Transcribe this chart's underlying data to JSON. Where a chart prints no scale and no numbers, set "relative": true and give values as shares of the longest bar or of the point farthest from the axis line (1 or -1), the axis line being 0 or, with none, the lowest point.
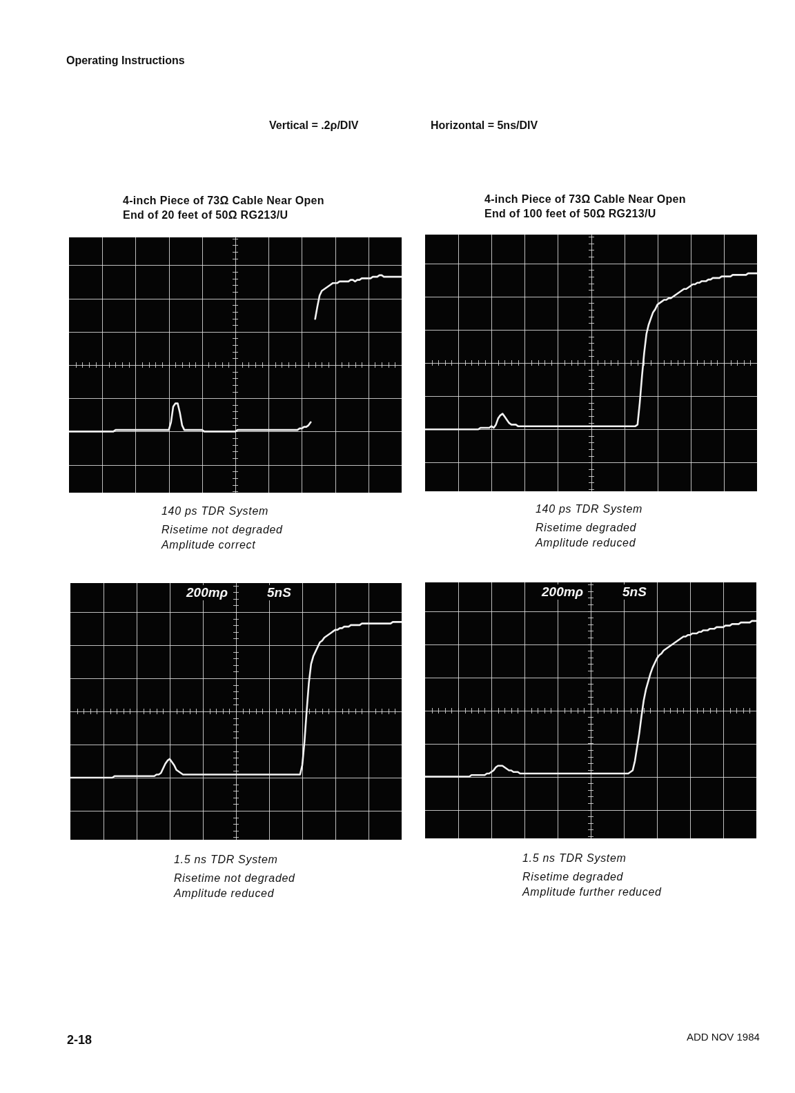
{
  "chart_data": [
    {
      "type": "other",
      "title": "Operating Instructions",
      "annotations": [
        "Vertical = .2ρ/DIV",
        "Horizontal = 5ns/DIV"
      ]
    },
    {
      "type": "line",
      "title": "4-inch Piece of 73Ω Cable Near Open\nEnd of 20 feet of 50Ω RG213/U",
      "relative": true,
      "grid": true,
      "color": "#f2f2f2",
      "categories": [
        null,
        null,
        null,
        null,
        null,
        null,
        null,
        null,
        null,
        null,
        null,
        null,
        null,
        null,
        null,
        null,
        null,
        null,
        null,
        null,
        null,
        null,
        null,
        null,
        null,
        null,
        null,
        null,
        null,
        null,
        null,
        null,
        null,
        null,
        null,
        null,
        null,
        null,
        null,
        null,
        null,
        null,
        null,
        null,
        null,
        null,
        null,
        null,
        null,
        null,
        null,
        null,
        null,
        null,
        null,
        null,
        null,
        null,
        null,
        null,
        null,
        null,
        null,
        null,
        null,
        null,
        null,
        null,
        null,
        null,
        null,
        null,
        null,
        null,
        null,
        null,
        null,
        null,
        null,
        null,
        null,
        null,
        null,
        null,
        null,
        null,
        null,
        null,
        null,
        null,
        null,
        null,
        null,
        null,
        null,
        null,
        null,
        null,
        null,
        null,
        null,
        null,
        null,
        null,
        null,
        null,
        null,
        null,
        null,
        null,
        null,
        null,
        null,
        null,
        null,
        null,
        null,
        null,
        null,
        null,
        null,
        null,
        null,
        null,
        null,
        null,
        null,
        null,
        null,
        null,
        null,
        null,
        null,
        null,
        null,
        null,
        null,
        null,
        null,
        null,
        null,
        null,
        null,
        null,
        null,
        null,
        null,
        null,
        null,
        null,
        null
      ],
      "values": [
        0,
        0,
        0,
        0,
        0,
        0,
        0,
        0,
        0,
        0,
        0,
        0,
        0,
        0,
        0,
        0,
        0,
        0,
        0,
        0,
        0,
        0.01,
        0.01,
        0.01,
        0.01,
        0.01,
        0.01,
        0.01,
        0.01,
        0.01,
        0.01,
        0.01,
        0.01,
        0.01,
        0.01,
        0.01,
        0.01,
        0.01,
        0.01,
        0.01,
        0.01,
        0.01,
        0.01,
        0.01,
        0.01,
        0.01,
        0.06,
        0.16,
        0.18,
        0.18,
        0.12,
        0.04,
        0.01,
        0.01,
        0.01,
        0.01,
        0.01,
        0.01,
        0.01,
        0.01,
        0.01,
        0,
        0,
        0,
        0,
        0,
        0,
        0,
        0,
        0,
        0,
        0,
        0,
        0,
        0,
        0,
        0.01,
        0.01,
        0.01,
        0.01,
        0.01,
        0.01,
        0.01,
        0.01,
        0.01,
        0.01,
        0.01,
        0.01,
        0.01,
        0.01,
        0.01,
        0.01,
        0.01,
        0.01,
        0.01,
        0.01,
        0.01,
        0.01,
        0.01,
        0.01,
        0.01,
        0.01,
        0.01,
        0.01,
        0.02,
        0.02,
        0.03,
        0.03,
        0.04,
        0.06,
        null,
        0.72,
        0.8,
        0.87,
        0.9,
        0.91,
        0.92,
        0.93,
        0.94,
        0.95,
        0.95,
        0.95,
        0.96,
        0.96,
        0.96,
        0.96,
        0.96,
        0.97,
        0.97,
        0.96,
        0.97,
        0.97,
        0.98,
        0.98,
        0.98,
        0.98,
        0.98,
        0.99,
        0.99,
        0.99,
        1,
        1,
        0.99,
        0.99,
        0.99,
        0.99,
        0.99,
        0.99,
        0.99,
        0.99,
        0.99
      ],
      "annotations": [
        "140 ps TDR System",
        "Risetime not degraded",
        "Amplitude correct"
      ]
    },
    {
      "type": "line",
      "title": "4-inch Piece of 73Ω Cable Near Open\nEnd of 100 feet of 50Ω RG213/U",
      "relative": true,
      "grid": true,
      "color": "#f2f2f2",
      "categories": [
        null,
        null,
        null,
        null,
        null,
        null,
        null,
        null,
        null,
        null,
        null,
        null,
        null,
        null,
        null,
        null,
        null,
        null,
        null,
        null,
        null,
        null,
        null,
        null,
        null,
        null,
        null,
        null,
        null,
        null,
        null,
        null,
        null,
        null,
        null,
        null,
        null,
        null,
        null,
        null,
        null,
        null,
        null,
        null,
        null,
        null,
        null,
        null,
        null,
        null,
        null,
        null,
        null,
        null,
        null,
        null,
        null,
        null,
        null,
        null,
        null,
        null,
        null,
        null,
        null,
        null,
        null,
        null,
        null,
        null,
        null,
        null,
        null,
        null,
        null,
        null,
        null,
        null,
        null,
        null,
        null,
        null,
        null,
        null,
        null,
        null,
        null,
        null,
        null,
        null,
        null,
        null,
        null,
        null,
        null,
        null,
        null,
        null,
        null,
        null,
        null,
        null,
        null,
        null,
        null,
        null,
        null,
        null,
        null,
        null,
        null,
        null,
        null,
        null,
        null,
        null,
        null,
        null,
        null,
        null,
        null,
        null,
        null,
        null,
        null,
        null,
        null,
        null,
        null,
        null,
        null,
        null,
        null,
        null,
        null,
        null,
        null,
        null,
        null,
        null,
        null,
        null,
        null,
        null,
        null,
        null,
        null,
        null,
        null,
        null,
        null
      ],
      "values": [
        0,
        0,
        0,
        0,
        0,
        0,
        0,
        0,
        0,
        0,
        0,
        0,
        0,
        0,
        0,
        0,
        0,
        0,
        0,
        0,
        0,
        0,
        0,
        0,
        0,
        0.01,
        0.01,
        0.01,
        0.01,
        0.01,
        0.02,
        0.01,
        0.03,
        0.07,
        0.09,
        0.1,
        0.08,
        0.06,
        0.04,
        0.03,
        0.03,
        0.03,
        0.02,
        0.02,
        0.02,
        0.02,
        0.02,
        0.02,
        0.02,
        0.02,
        0.02,
        0.02,
        0.02,
        0.02,
        0.02,
        0.02,
        0.02,
        0.02,
        0.02,
        0.02,
        0.02,
        0.02,
        0.02,
        0.02,
        0.02,
        0.02,
        0.02,
        0.02,
        0.02,
        0.02,
        0.02,
        0.02,
        0.02,
        0.02,
        0.02,
        0.02,
        0.02,
        0.02,
        0.02,
        0.02,
        0.02,
        0.02,
        0.02,
        0.02,
        0.02,
        0.02,
        0.02,
        0.02,
        0.02,
        0.02,
        0.02,
        0.02,
        0.02,
        0.02,
        0.02,
        0.02,
        0.03,
        0.17,
        0.34,
        0.49,
        0.61,
        0.67,
        0.71,
        0.75,
        0.77,
        0.8,
        0.81,
        0.82,
        0.83,
        0.83,
        0.84,
        0.84,
        0.85,
        0.86,
        0.87,
        0.88,
        0.89,
        0.9,
        0.9,
        0.91,
        0.92,
        0.93,
        0.93,
        0.94,
        0.94,
        0.95,
        0.95,
        0.95,
        0.96,
        0.96,
        0.97,
        0.97,
        0.97,
        0.97,
        0.98,
        0.98,
        0.98,
        0.98,
        0.98,
        0.99,
        0.99,
        0.99,
        0.99,
        0.99,
        0.99,
        0.99,
        1,
        1,
        1,
        1,
        1
      ],
      "annotations": [
        "140 ps TDR System",
        "Risetime degraded",
        "Amplitude reduced"
      ]
    },
    {
      "type": "line",
      "xlabel": "5nS",
      "ylabel": "200mρ",
      "relative": true,
      "grid": true,
      "color": "#f2f2f2",
      "categories": [
        null,
        null,
        null,
        null,
        null,
        null,
        null,
        null,
        null,
        null,
        null,
        null,
        null,
        null,
        null,
        null,
        null,
        null,
        null,
        null,
        null,
        null,
        null,
        null,
        null,
        null,
        null,
        null,
        null,
        null,
        null,
        null,
        null,
        null,
        null,
        null,
        null,
        null,
        null,
        null,
        null,
        null,
        null,
        null,
        null,
        null,
        null,
        null,
        null,
        null,
        null,
        null,
        null,
        null,
        null,
        null,
        null,
        null,
        null,
        null,
        null,
        null,
        null,
        null,
        null,
        null,
        null,
        null,
        null,
        null,
        null,
        null,
        null,
        null,
        null,
        null,
        null,
        null,
        null,
        null,
        null,
        null,
        null,
        null,
        null,
        null,
        null,
        null,
        null,
        null,
        null,
        null,
        null,
        null,
        null,
        null,
        null,
        null,
        null,
        null,
        null,
        null,
        null,
        null,
        null,
        null,
        null,
        null,
        null,
        null,
        null,
        null,
        null,
        null,
        null,
        null,
        null,
        null,
        null,
        null,
        null,
        null,
        null,
        null,
        null,
        null,
        null,
        null,
        null,
        null,
        null,
        null,
        null,
        null,
        null,
        null,
        null,
        null,
        null,
        null,
        null,
        null,
        null,
        null,
        null,
        null,
        null,
        null,
        null,
        null,
        null
      ],
      "values": [
        0,
        0,
        0,
        0,
        0,
        0,
        0,
        0,
        0,
        0,
        0,
        0,
        0,
        0,
        0,
        0,
        0,
        0,
        0,
        0,
        0.01,
        0.01,
        0.01,
        0.01,
        0.01,
        0.01,
        0.01,
        0.01,
        0.01,
        0.01,
        0.01,
        0.01,
        0.01,
        0.01,
        0.01,
        0.01,
        0.01,
        0.01,
        0.01,
        0.02,
        0.02,
        0.03,
        0.06,
        0.09,
        0.11,
        0.12,
        0.1,
        0.08,
        0.05,
        0.04,
        0.03,
        0.02,
        0.02,
        0.02,
        0.02,
        0.02,
        0.02,
        0.02,
        0.02,
        0.02,
        0.02,
        0.02,
        0.02,
        0.02,
        0.02,
        0.02,
        0.02,
        0.02,
        0.02,
        0.02,
        0.02,
        0.02,
        0.02,
        0.02,
        0.02,
        0.02,
        0.02,
        0.02,
        0.02,
        0.02,
        0.02,
        0.02,
        0.02,
        0.02,
        0.02,
        0.02,
        0.02,
        0.02,
        0.02,
        0.02,
        0.02,
        0.02,
        0.02,
        0.02,
        0.02,
        0.02,
        0.02,
        0.02,
        0.02,
        0.02,
        0.02,
        0.02,
        0.02,
        0.02,
        0.02,
        0.08,
        0.23,
        0.43,
        0.61,
        0.73,
        0.78,
        0.81,
        0.84,
        0.87,
        0.88,
        0.9,
        0.91,
        0.92,
        0.93,
        0.94,
        0.95,
        0.95,
        0.96,
        0.96,
        0.97,
        0.97,
        0.97,
        0.98,
        0.98,
        0.98,
        0.98,
        0.98,
        0.99,
        0.99,
        0.99,
        0.99,
        0.99,
        0.99,
        0.99,
        0.99,
        0.99,
        0.99,
        0.99,
        0.99,
        0.99,
        0.99,
        1,
        1,
        1,
        1,
        1
      ],
      "annotations": [
        "1.5 ns TDR System",
        "Risetime not degraded",
        "Amplitude reduced"
      ]
    },
    {
      "type": "line",
      "xlabel": "5nS",
      "ylabel": "200mρ",
      "relative": true,
      "grid": true,
      "color": "#f2f2f2",
      "categories": [
        null,
        null,
        null,
        null,
        null,
        null,
        null,
        null,
        null,
        null,
        null,
        null,
        null,
        null,
        null,
        null,
        null,
        null,
        null,
        null,
        null,
        null,
        null,
        null,
        null,
        null,
        null,
        null,
        null,
        null,
        null,
        null,
        null,
        null,
        null,
        null,
        null,
        null,
        null,
        null,
        null,
        null,
        null,
        null,
        null,
        null,
        null,
        null,
        null,
        null,
        null,
        null,
        null,
        null,
        null,
        null,
        null,
        null,
        null,
        null,
        null,
        null,
        null,
        null,
        null,
        null,
        null,
        null,
        null,
        null,
        null,
        null,
        null,
        null,
        null,
        null,
        null,
        null,
        null,
        null,
        null,
        null,
        null,
        null,
        null,
        null,
        null,
        null,
        null,
        null,
        null,
        null,
        null,
        null,
        null,
        null,
        null,
        null,
        null,
        null,
        null,
        null,
        null,
        null,
        null,
        null,
        null,
        null,
        null,
        null,
        null,
        null,
        null,
        null,
        null,
        null,
        null,
        null,
        null,
        null,
        null,
        null,
        null,
        null,
        null,
        null,
        null,
        null,
        null,
        null,
        null,
        null,
        null,
        null,
        null,
        null,
        null,
        null,
        null,
        null,
        null,
        null,
        null,
        null,
        null,
        null,
        null,
        null,
        null,
        null,
        null
      ],
      "values": [
        0,
        0,
        0,
        0,
        0,
        0,
        0,
        0,
        0,
        0,
        0,
        0,
        0,
        0,
        0,
        0,
        0,
        0,
        0,
        0,
        0,
        0.01,
        0.01,
        0.01,
        0.01,
        0.01,
        0.01,
        0.01,
        0.02,
        0.02,
        0.03,
        0.04,
        0.06,
        0.07,
        0.07,
        0.07,
        0.06,
        0.05,
        0.04,
        0.04,
        0.03,
        0.03,
        0.03,
        0.02,
        0.02,
        0.02,
        0.02,
        0.02,
        0.02,
        0.02,
        0.02,
        0.02,
        0.02,
        0.02,
        0.02,
        0.02,
        0.02,
        0.02,
        0.02,
        0.02,
        0.02,
        0.02,
        0.02,
        0.02,
        0.02,
        0.02,
        0.02,
        0.02,
        0.02,
        0.02,
        0.02,
        0.02,
        0.02,
        0.02,
        0.02,
        0.02,
        0.02,
        0.02,
        0.02,
        0.02,
        0.02,
        0.02,
        0.02,
        0.02,
        0.02,
        0.02,
        0.02,
        0.02,
        0.02,
        0.02,
        0.02,
        0.02,
        0.02,
        0.03,
        0.04,
        0.1,
        0.19,
        0.28,
        0.39,
        0.49,
        0.56,
        0.61,
        0.66,
        0.7,
        0.73,
        0.76,
        0.78,
        0.79,
        0.81,
        0.82,
        0.83,
        0.84,
        0.85,
        0.86,
        0.87,
        0.88,
        0.89,
        0.9,
        0.9,
        0.91,
        0.91,
        0.92,
        0.92,
        0.92,
        0.93,
        0.93,
        0.94,
        0.94,
        0.94,
        0.95,
        0.95,
        0.95,
        0.96,
        0.96,
        0.96,
        0.96,
        0.97,
        0.97,
        0.97,
        0.98,
        0.98,
        0.98,
        0.98,
        0.99,
        0.99,
        0.99,
        0.99,
        0.99,
        1,
        1,
        1
      ],
      "annotations": [
        "1.5 ns TDR System",
        "Risetime degraded",
        "Amplitude further reduced"
      ]
    },
    {
      "type": "other",
      "annotations": [
        "2-18",
        "ADD NOV 1984"
      ]
    }
  ]
}
